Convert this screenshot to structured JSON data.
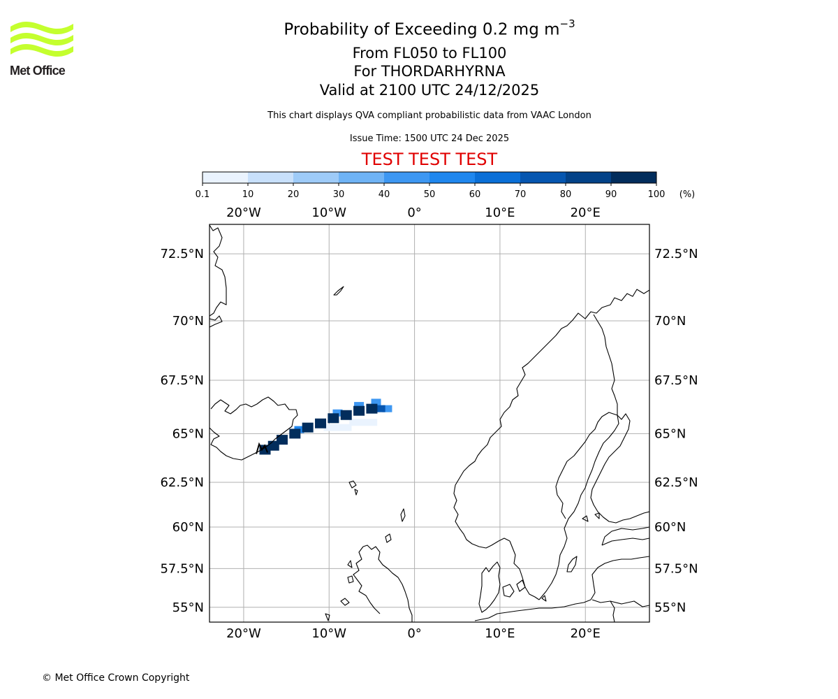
{
  "header": {
    "title_main": "Probability of Exceeding 0.2 mg m",
    "title_exp": "−3",
    "levels": "From FL050 to FL100",
    "volcano": "For THORDARHYRNA",
    "valid": "Valid at 2100 UTC 24/12/2025",
    "disclaimer": "This chart displays QVA compliant probabilistic data from VAAC London",
    "issue_time": "Issue Time: 1500 UTC 24 Dec 2025",
    "test_banner": "TEST TEST TEST"
  },
  "logo": {
    "text": "Met Office",
    "accent_color": "#c4ff2e"
  },
  "colorbar": {
    "ticks": [
      "0.1",
      "10",
      "20",
      "30",
      "40",
      "50",
      "60",
      "70",
      "80",
      "90",
      "100"
    ],
    "unit": "(%)",
    "colors": [
      "#eaf3fe",
      "#c8e0fb",
      "#9ecbf8",
      "#6fb3f5",
      "#3d97f2",
      "#1f87ee",
      "#0a6fd7",
      "#0656b0",
      "#034288",
      "#022d5c"
    ]
  },
  "map": {
    "lon_range": [
      -24,
      27.5
    ],
    "lat_range": [
      54,
      73.5
    ],
    "projection": "mercator",
    "gridlines": true,
    "lon_labels": [
      "20°W",
      "10°W",
      "0°",
      "10°E",
      "20°E"
    ],
    "lat_labels": [
      "72.5°N",
      "70°N",
      "67.5°N",
      "65°N",
      "62.5°N",
      "60°N",
      "57.5°N",
      "55°N"
    ],
    "volcano_marker": {
      "lon": -17.7,
      "lat": 64.2
    },
    "plume": [
      {
        "lon": -17.5,
        "lat": 64.2,
        "prob": 95
      },
      {
        "lon": -16.5,
        "lat": 64.4,
        "prob": 95
      },
      {
        "lon": -15.5,
        "lat": 64.7,
        "prob": 95
      },
      {
        "lon": -14.0,
        "lat": 65.0,
        "prob": 95
      },
      {
        "lon": -12.5,
        "lat": 65.3,
        "prob": 95
      },
      {
        "lon": -11.0,
        "lat": 65.5,
        "prob": 95
      },
      {
        "lon": -9.5,
        "lat": 65.75,
        "prob": 95
      },
      {
        "lon": -8.0,
        "lat": 65.9,
        "prob": 95
      },
      {
        "lon": -6.5,
        "lat": 66.1,
        "prob": 95
      },
      {
        "lon": -5.0,
        "lat": 66.2,
        "prob": 95
      },
      {
        "lon": -4.0,
        "lat": 66.2,
        "prob": 75
      },
      {
        "lon": -3.2,
        "lat": 66.2,
        "prob": 45
      },
      {
        "lon": -4.5,
        "lat": 66.5,
        "prob": 45
      },
      {
        "lon": -6.5,
        "lat": 66.35,
        "prob": 45
      },
      {
        "lon": -9.0,
        "lat": 66.0,
        "prob": 45
      },
      {
        "lon": -13.5,
        "lat": 65.2,
        "prob": 55
      },
      {
        "lon": -6.0,
        "lat": 65.55,
        "prob": 5
      },
      {
        "lon": -9.0,
        "lat": 65.3,
        "prob": 5
      }
    ]
  },
  "footer": {
    "copyright": "© Met Office Crown Copyright"
  }
}
